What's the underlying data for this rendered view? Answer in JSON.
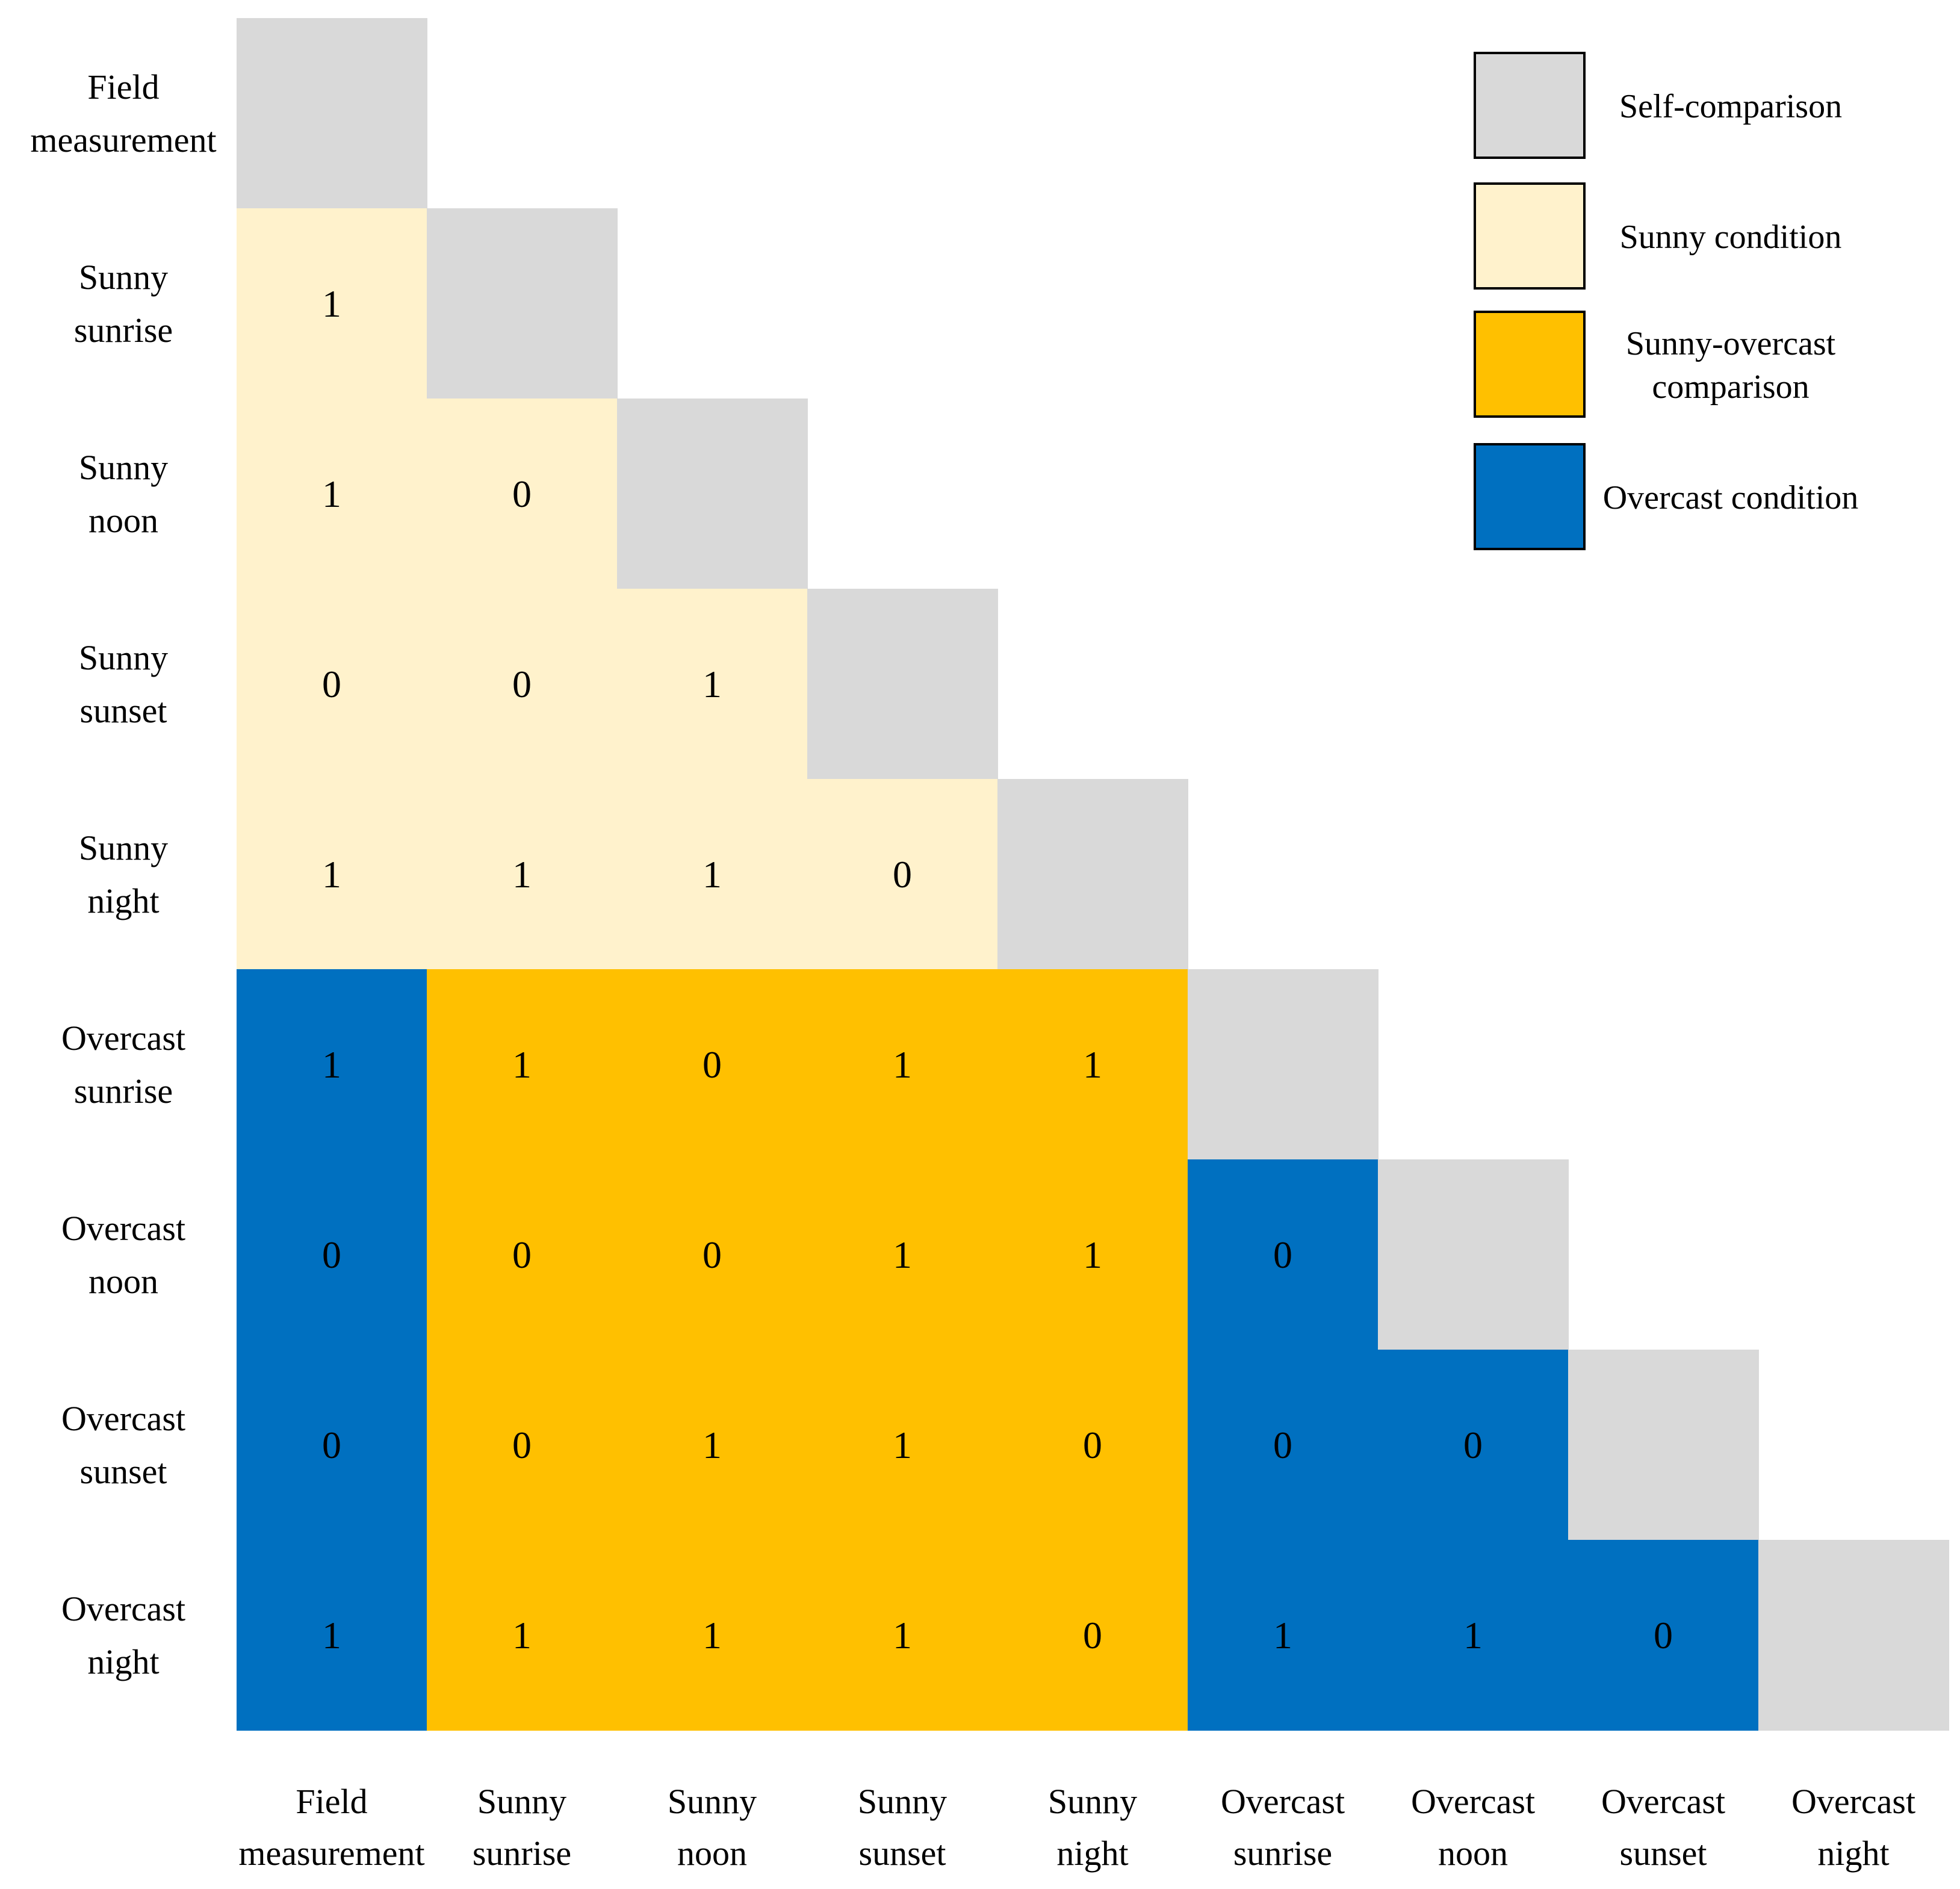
{
  "chart_data": {
    "type": "heatmap",
    "row_labels": [
      [
        "Field",
        "measurement"
      ],
      [
        "Sunny",
        "sunrise"
      ],
      [
        "Sunny",
        "noon"
      ],
      [
        "Sunny",
        "sunset"
      ],
      [
        "Sunny",
        "night"
      ],
      [
        "Overcast",
        "sunrise"
      ],
      [
        "Overcast",
        "noon"
      ],
      [
        "Overcast",
        "sunset"
      ],
      [
        "Overcast",
        "night"
      ]
    ],
    "column_labels": [
      [
        "Field",
        "measurement"
      ],
      [
        "Sunny",
        "sunrise"
      ],
      [
        "Sunny",
        "noon"
      ],
      [
        "Sunny",
        "sunset"
      ],
      [
        "Sunny",
        "night"
      ],
      [
        "Overcast",
        "sunrise"
      ],
      [
        "Overcast",
        "noon"
      ],
      [
        "Overcast",
        "sunset"
      ],
      [
        "Overcast",
        "night"
      ]
    ],
    "values": [
      [],
      [
        1
      ],
      [
        1,
        0
      ],
      [
        0,
        0,
        1
      ],
      [
        1,
        1,
        1,
        0
      ],
      [
        1,
        1,
        0,
        1,
        1
      ],
      [
        0,
        0,
        0,
        1,
        1,
        0
      ],
      [
        0,
        0,
        1,
        1,
        0,
        0,
        0
      ],
      [
        1,
        1,
        1,
        1,
        0,
        1,
        1,
        0
      ]
    ],
    "categories": [
      {
        "key": "self",
        "label": "Self-comparison",
        "color": "#d9d9d9"
      },
      {
        "key": "sunny",
        "label": "Sunny condition",
        "color": "#fff2cc"
      },
      {
        "key": "mixed",
        "label": [
          "Sunny-overcast",
          "comparison"
        ],
        "color": "#ffc000"
      },
      {
        "key": "overcast",
        "label": "Overcast condition",
        "color": "#0070c0"
      }
    ],
    "legend_position": "top-right"
  }
}
